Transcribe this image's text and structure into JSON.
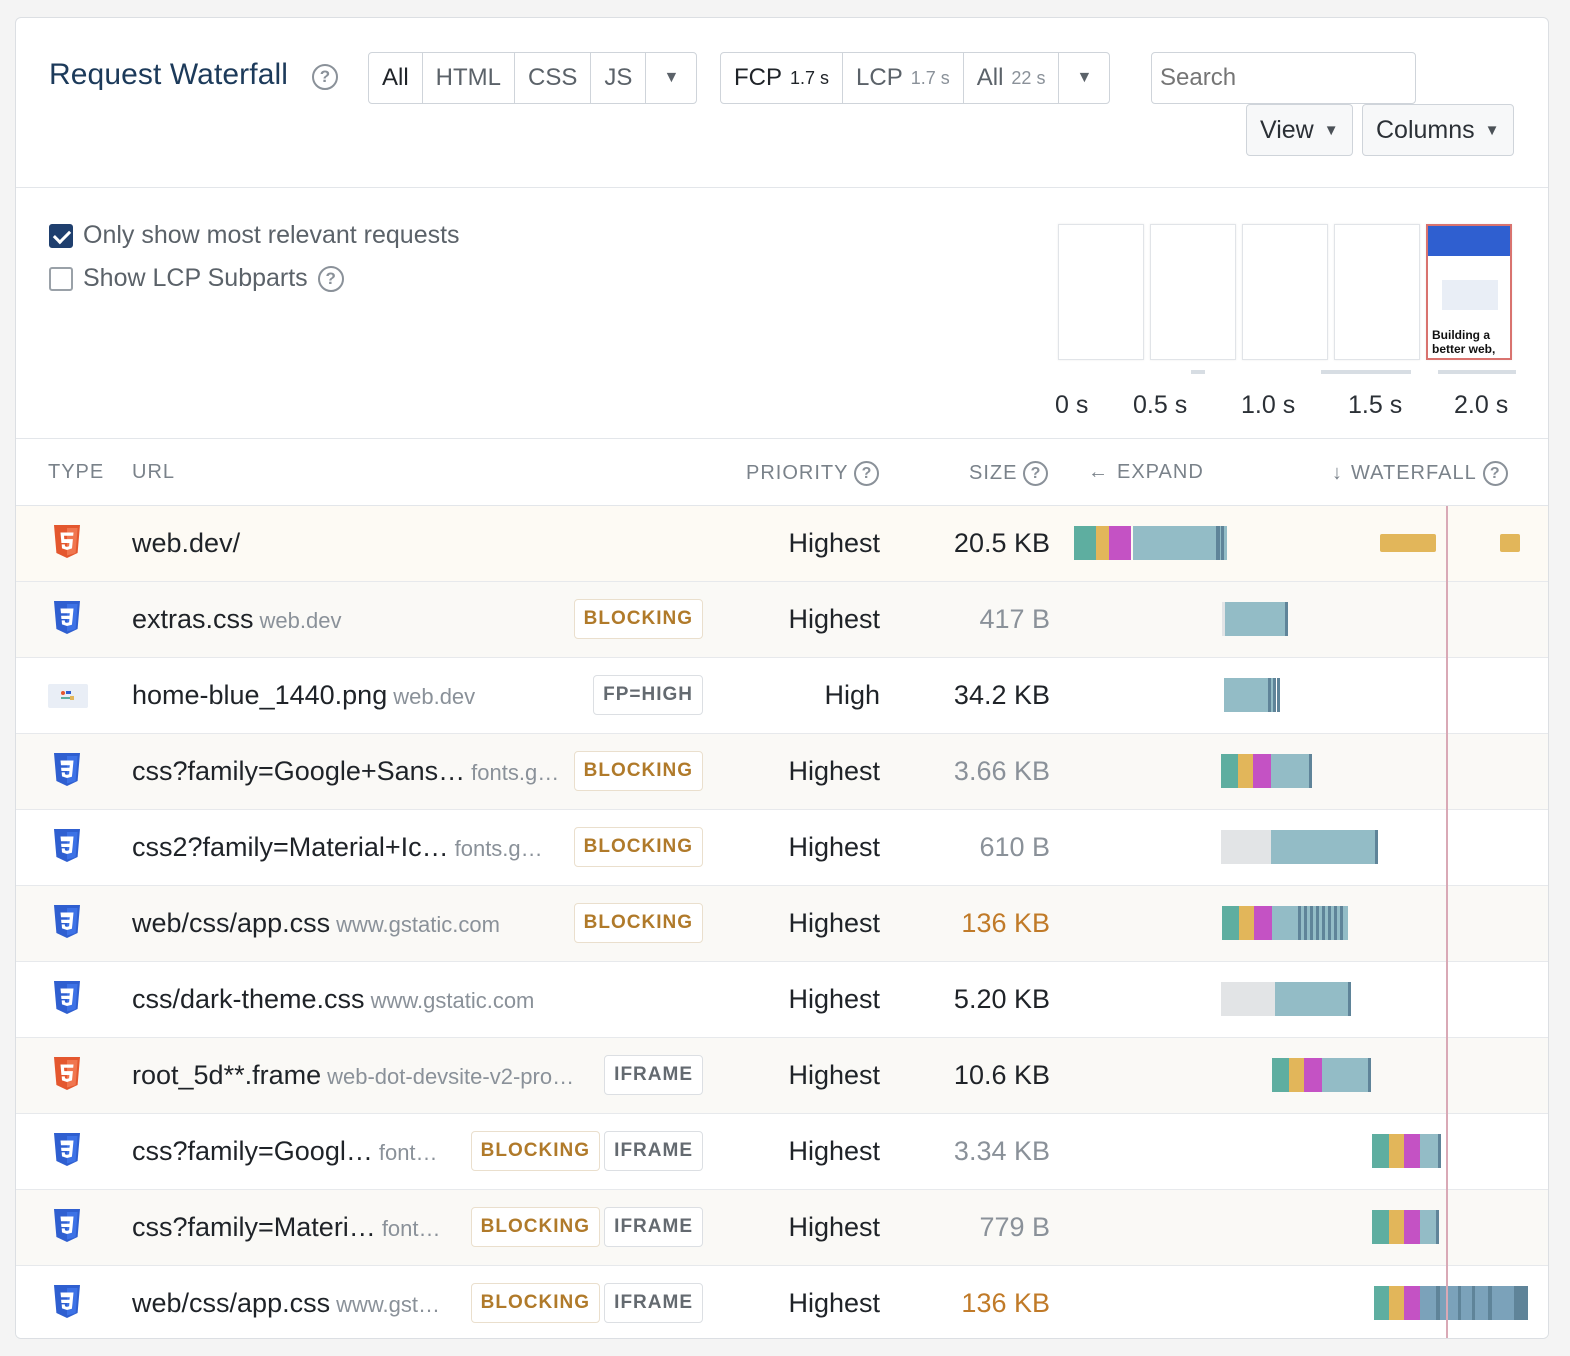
{
  "header": {
    "title": "Request Waterfall",
    "type_filters": [
      "All",
      "HTML",
      "CSS",
      "JS"
    ],
    "milestones": [
      {
        "label": "FCP",
        "time": "1.7 s"
      },
      {
        "label": "LCP",
        "time": "1.7 s"
      },
      {
        "label": "All",
        "time": "22 s"
      }
    ],
    "search_placeholder": "Search",
    "view_label": "View",
    "columns_label": "Columns"
  },
  "options": {
    "relevant_label": "Only show most relevant requests",
    "relevant_checked": true,
    "lcp_label": "Show LCP Subparts",
    "lcp_checked": false
  },
  "filmstrip": {
    "ticks": [
      "0 s",
      "0.5 s",
      "1.0 s",
      "1.5 s",
      "2.0 s"
    ],
    "lcp_frame_text": "Building a better web,"
  },
  "columns": {
    "type": "TYPE",
    "url": "URL",
    "priority": "PRIORITY",
    "size": "SIZE",
    "expand": "EXPAND",
    "waterfall": "WATERFALL"
  },
  "rows": [
    {
      "type": "html",
      "url": "web.dev/",
      "domain": "",
      "badges": [],
      "priority": "Highest",
      "size": "20.5 KB",
      "size_style": "normal"
    },
    {
      "type": "css",
      "url": "extras.css",
      "domain": "web.dev",
      "badges": [
        "BLOCKING"
      ],
      "priority": "Highest",
      "size": "417 B",
      "size_style": "muted"
    },
    {
      "type": "image",
      "url": "home-blue_1440.png",
      "domain": "web.dev",
      "badges": [
        "FP=HIGH"
      ],
      "priority": "High",
      "size": "34.2 KB",
      "size_style": "normal"
    },
    {
      "type": "css",
      "url": "css?family=Google+Sans…",
      "domain": "fonts.g…",
      "badges": [
        "BLOCKING"
      ],
      "priority": "Highest",
      "size": "3.66 KB",
      "size_style": "muted"
    },
    {
      "type": "css",
      "url": "css2?family=Material+Ic…",
      "domain": "fonts.g…",
      "badges": [
        "BLOCKING"
      ],
      "priority": "Highest",
      "size": "610 B",
      "size_style": "muted"
    },
    {
      "type": "css",
      "url": "web/css/app.css",
      "domain": "www.gstatic.com",
      "badges": [
        "BLOCKING"
      ],
      "priority": "Highest",
      "size": "136 KB",
      "size_style": "warn"
    },
    {
      "type": "css",
      "url": "css/dark-theme.css",
      "domain": "www.gstatic.com",
      "badges": [],
      "priority": "Highest",
      "size": "5.20 KB",
      "size_style": "normal"
    },
    {
      "type": "html",
      "url": "root_5d**.frame",
      "domain": "web-dot-devsite-v2-pro…",
      "badges": [
        "IFRAME"
      ],
      "priority": "Highest",
      "size": "10.6 KB",
      "size_style": "normal"
    },
    {
      "type": "css",
      "url": "css?family=Googl…",
      "domain": "font…",
      "badges": [
        "BLOCKING",
        "IFRAME"
      ],
      "priority": "Highest",
      "size": "3.34 KB",
      "size_style": "muted"
    },
    {
      "type": "css",
      "url": "css?family=Materi…",
      "domain": "font…",
      "badges": [
        "BLOCKING",
        "IFRAME"
      ],
      "priority": "Highest",
      "size": "779 B",
      "size_style": "muted"
    },
    {
      "type": "css",
      "url": "web/css/app.css",
      "domain": "www.gst…",
      "badges": [
        "BLOCKING",
        "IFRAME"
      ],
      "priority": "Highest",
      "size": "136 KB",
      "size_style": "warn"
    }
  ],
  "colors": {
    "title": "#1c3a5a",
    "html_icon": "#e4572e",
    "css_icon": "#2f5fd0",
    "dns": "#5eaea0",
    "connect": "#e2b65a",
    "ssl": "#c452c4",
    "download": "#93bcc6",
    "wait": "#e2e4e6",
    "lcp_marker": "#d9a9b6"
  }
}
